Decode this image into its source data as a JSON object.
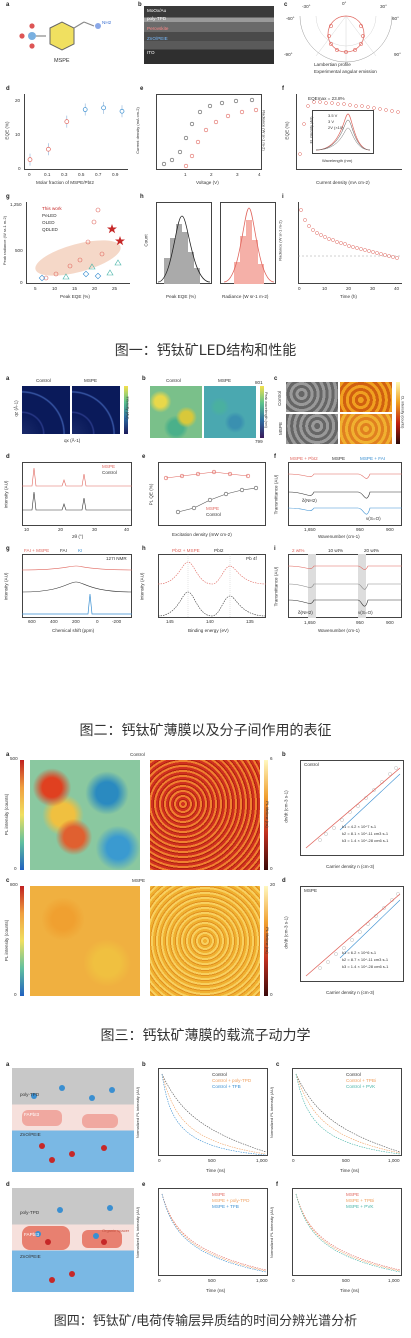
{
  "captions": {
    "fig1": "图一：钙钛矿LED结构和性能",
    "fig2": "图二：钙钛矿薄膜以及分子间作用的表征",
    "fig3": "图三：钙钛矿薄膜的载流子动力学",
    "fig4": "图四：钙钛矿/电荷传输层异质结的时间分辨光谱分析"
  },
  "fig1": {
    "a": {
      "label": "a",
      "molecule": "MSPE",
      "group": "NH2"
    },
    "b": {
      "label": "b",
      "layers": [
        "MoOx/Au",
        "poly-TPD",
        "Perovskite",
        "ZnO/PEIE",
        "ITO"
      ]
    },
    "c": {
      "label": "c",
      "legend": [
        "Lambertian profile",
        "Experimental angular emission"
      ],
      "ticks": [
        "-30°",
        "0°",
        "30°",
        "-60°",
        "60°",
        "-90°",
        "90°"
      ]
    },
    "d": {
      "label": "d",
      "ylabel": "EQE (%)",
      "xlabel": "Molar fraction of MSPE/PbI2",
      "xticks": [
        "0",
        "0.1",
        "0.3",
        "0.5",
        "0.7",
        "0.9"
      ],
      "yticks": [
        "0",
        "5",
        "10",
        "15",
        "20"
      ],
      "values": [
        3,
        6,
        14,
        17.5,
        18,
        17
      ]
    },
    "e": {
      "label": "e",
      "ylabel_left": "Current density (mA cm-2)",
      "ylabel_right": "Radiance (W sr-1 m-2)",
      "xlabel": "Voltage (V)",
      "xticks": [
        "1",
        "2",
        "3",
        "4"
      ]
    },
    "f": {
      "label": "f",
      "ylabel": "EQE (%)",
      "xlabel": "Current density (mA cm-2)",
      "eqe_max": "EQEmax = 23.8%",
      "inset_legend": [
        "3.5 V",
        "3 V",
        "2V (×10)"
      ],
      "inset_xlabel": "Wavelength (nm)",
      "inset_ylabel": "EL intensity (AU)",
      "inset_xticks": [
        "600",
        "700",
        "800",
        "900"
      ]
    },
    "g": {
      "label": "g",
      "ylabel": "Peak radiance (W sr-1 m-2)",
      "xlabel": "Peak EQE (%)",
      "legend": [
        "This work",
        "PeLED",
        "OLED",
        "QDLED"
      ],
      "xticks": [
        "5",
        "10",
        "15",
        "20",
        "25"
      ],
      "yticks": [
        "0",
        "250",
        "500",
        "750",
        "1,000",
        "1,250"
      ]
    },
    "h": {
      "label": "h",
      "ylabel": "Count",
      "xlabel_left": "Peak EQE (%)",
      "xlabel_right": "Radiance (W sr-1 m-2)",
      "xticks_left": [
        "16",
        "20",
        "24"
      ],
      "xticks_right": [
        "250",
        "500",
        "750"
      ],
      "yticks": [
        "0",
        "5",
        "10",
        "15",
        "20",
        "25",
        "30"
      ]
    },
    "i": {
      "label": "i",
      "ylabel": "Radiance (W sr-1 m-2)",
      "xlabel": "Time (h)",
      "xticks": [
        "0",
        "10",
        "20",
        "30",
        "40"
      ],
      "yticks": [
        "0",
        "25",
        "50",
        "75",
        "100"
      ]
    }
  },
  "fig2": {
    "a": {
      "label": "a",
      "titles": [
        "Control",
        "MSPE"
      ],
      "xlabel": "qx (Å-1)",
      "ylabel": "qz (Å-1)",
      "cbar": "Intensity (AU)"
    },
    "b": {
      "label": "b",
      "titles": [
        "Control",
        "MSPE"
      ],
      "cbar": "Peak wavelength (nm)",
      "cmax": "801",
      "cmin": "799"
    },
    "c": {
      "label": "c",
      "rows": [
        "Control",
        "MSPE"
      ],
      "cbar": "CL intensity (counts)"
    },
    "d": {
      "label": "d",
      "legend": [
        "MSPE",
        "Control"
      ],
      "xlabel": "2θ (°)",
      "ylabel": "Intensity (AU)",
      "xticks": [
        "10",
        "20",
        "30",
        "40"
      ]
    },
    "e": {
      "label": "e",
      "legend": [
        "MSPE",
        "Control"
      ],
      "xlabel": "Excitation density (mW cm-2)",
      "ylabel": "PL QE (%)"
    },
    "f": {
      "label": "f",
      "legend": [
        "MSPE + PbI2",
        "MSPE",
        "MSPE + FAI"
      ],
      "xlabel": "Wavenumber (cm-1)",
      "ylabel": "Transmittance (AU)",
      "notes": [
        "δ(NH2)",
        "ν(S=O)"
      ],
      "xticks": [
        "1,650",
        "950",
        "900"
      ]
    },
    "g": {
      "label": "g",
      "legend": [
        "FAI + MSPE",
        "FAI",
        "KI"
      ],
      "note": "127I NMR",
      "xlabel": "Chemical shift (ppm)",
      "ylabel": "Intensity (AU)",
      "xticks": [
        "600",
        "400",
        "200",
        "0",
        "-200"
      ]
    },
    "h": {
      "label": "h",
      "legend": [
        "PbI2 + MSPE",
        "PbI2"
      ],
      "note": "Pb 4f",
      "xlabel": "Binding energy (eV)",
      "ylabel": "Intensity (AU)",
      "xticks": [
        "145",
        "140",
        "135"
      ]
    },
    "i": {
      "label": "i",
      "legend": [
        "2 wt%",
        "10 wt%",
        "20 wt%"
      ],
      "xlabel": "Wavenumber (cm-1)",
      "ylabel": "Transmittance (AU)",
      "notes": [
        "δ(NH2)",
        "ν(S=O)"
      ],
      "xticks": [
        "1,650",
        "950",
        "900"
      ]
    }
  },
  "fig3": {
    "a": {
      "label": "a",
      "title": "Control",
      "cbar_left": "PL intensity (counts)",
      "cbar_left_max": "500",
      "cbar_left_min": "0",
      "cbar_right": "PL lifetime (ns)",
      "cbar_right_max": "6",
      "cbar_right_min": "0"
    },
    "b": {
      "label": "b",
      "title": "Control",
      "xlabel": "Carrier density n (cm-3)",
      "ylabel": "dn/dt (cm-3 s-1)",
      "k1": "k1 = 4.2 × 10^7 s-1",
      "k2": "k2 = 8.1 × 10^-11 cm3 s-1",
      "k3": "k3 = 1.4 × 10^-28 cm6 s-1"
    },
    "c": {
      "label": "c",
      "title": "MSPE",
      "cbar_left": "PL intensity (counts)",
      "cbar_left_max": "800",
      "cbar_left_min": "0",
      "cbar_right": "PL lifetime (ns)",
      "cbar_right_max": "20",
      "cbar_right_min": "0"
    },
    "d": {
      "label": "d",
      "title": "MSPE",
      "xlabel": "Carrier density n (cm-3)",
      "ylabel": "dn/dt (cm-3 s-1)",
      "k1": "k1 = 6.2 × 10^6 s-1",
      "k2": "k2 = 8.7 × 10^-11 cm3 s-1",
      "k3": "k3 = 1.4 × 10^-28 cm6 s-1"
    }
  },
  "fig4": {
    "a": {
      "label": "a",
      "layers": [
        "poly-TPD",
        "FAPbI3",
        "ZnO/PEIE"
      ]
    },
    "b": {
      "label": "b",
      "legend": [
        "Control",
        "Control + poly-TPD",
        "Control + TFB"
      ],
      "xlabel": "Time (ns)",
      "ylabel": "Normalized PL intensity (AU)",
      "xticks": [
        "0",
        "500",
        "1,000"
      ]
    },
    "c": {
      "label": "c",
      "legend": [
        "Control",
        "Control + TPBi",
        "Control + PVK"
      ],
      "xlabel": "Time (ns)",
      "ylabel": "Normalized PL intensity (AU)",
      "xticks": [
        "0",
        "500",
        "1,000"
      ]
    },
    "d": {
      "label": "d",
      "layers": [
        "poly-TPD",
        "FAPbI3",
        "ZnO/PEIE"
      ],
      "spacer": "Organic spacer"
    },
    "e": {
      "label": "e",
      "legend": [
        "MSPE",
        "MSPE + poly-TPD",
        "MSPE + TFB"
      ],
      "xlabel": "Time (ns)",
      "ylabel": "Normalized PL intensity (AU)",
      "xticks": [
        "0",
        "500",
        "1,000"
      ]
    },
    "f": {
      "label": "f",
      "legend": [
        "MSPE",
        "MSPE + TPBi",
        "MSPE + PVK"
      ],
      "xlabel": "Time (ns)",
      "ylabel": "Normalized PL intensity (AU)",
      "xticks": [
        "0",
        "500",
        "1,000"
      ]
    }
  },
  "colors": {
    "red": "#e0665e",
    "grey": "#555555",
    "blue": "#3a8fd1",
    "orange": "#f0a060",
    "teal": "#46b4a8"
  }
}
